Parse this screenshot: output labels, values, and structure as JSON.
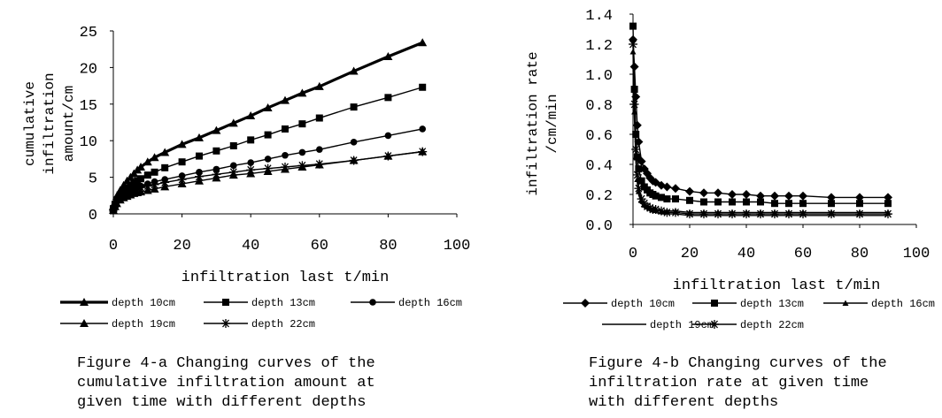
{
  "chart_data": [
    {
      "type": "line",
      "ylabel": [
        "cumulative",
        "infiltration",
        "amount/cm"
      ],
      "xlabel": "infiltration last t/min",
      "caption": "Figure 4-a Changing curves of the\ncumulative infiltration amount at\ngiven time with different depths",
      "xlim": [
        0,
        100
      ],
      "ylim": [
        0,
        25
      ],
      "x_ticks": [
        "0",
        "20",
        "40",
        "60",
        "80",
        "100"
      ],
      "y_ticks": [
        "0",
        "5",
        "10",
        "15",
        "20",
        "25"
      ],
      "grid": false,
      "legend_position": "bottom",
      "series": [
        {
          "name": "depth 10cm",
          "marker": "triangle",
          "width": 3.2,
          "x": [
            0,
            0.5,
            1,
            2,
            3,
            4,
            5,
            6,
            7,
            8,
            10,
            12,
            15,
            20,
            25,
            30,
            35,
            40,
            45,
            50,
            55,
            60,
            70,
            80,
            90
          ],
          "y": [
            0.8,
            1.6,
            2.4,
            3.2,
            3.9,
            4.5,
            5.0,
            5.5,
            6.0,
            6.4,
            7.1,
            7.7,
            8.4,
            9.5,
            10.4,
            11.4,
            12.4,
            13.4,
            14.5,
            15.5,
            16.5,
            17.4,
            19.5,
            21.5,
            23.4
          ]
        },
        {
          "name": "depth 13cm",
          "marker": "square",
          "width": 1.4,
          "x": [
            0,
            0.5,
            1,
            2,
            3,
            4,
            5,
            6,
            7,
            8,
            10,
            12,
            15,
            20,
            25,
            30,
            35,
            40,
            45,
            50,
            55,
            60,
            70,
            80,
            90
          ],
          "y": [
            0.7,
            1.3,
            1.9,
            2.6,
            3.1,
            3.5,
            3.9,
            4.2,
            4.5,
            4.8,
            5.3,
            5.7,
            6.3,
            7.1,
            7.9,
            8.6,
            9.3,
            10.1,
            10.8,
            11.6,
            12.3,
            13.1,
            14.6,
            15.9,
            17.3
          ]
        },
        {
          "name": "depth 16cm",
          "marker": "circle",
          "width": 1.4,
          "x": [
            0,
            0.5,
            1,
            2,
            3,
            4,
            5,
            6,
            7,
            8,
            10,
            12,
            15,
            20,
            25,
            30,
            35,
            40,
            45,
            50,
            55,
            60,
            70,
            80,
            90
          ],
          "y": [
            0.6,
            1.2,
            1.7,
            2.3,
            2.7,
            3.0,
            3.2,
            3.4,
            3.6,
            3.8,
            4.1,
            4.4,
            4.7,
            5.2,
            5.7,
            6.1,
            6.6,
            7.0,
            7.5,
            8.0,
            8.4,
            8.8,
            9.8,
            10.7,
            11.6
          ]
        },
        {
          "name": "depth 19cm",
          "marker": "triangle",
          "width": 1.4,
          "x": [
            0,
            0.5,
            1,
            2,
            3,
            4,
            5,
            6,
            7,
            8,
            10,
            12,
            15,
            20,
            25,
            30,
            35,
            40,
            45,
            50,
            55,
            60,
            70,
            80,
            90
          ],
          "y": [
            0.5,
            1.0,
            1.4,
            1.9,
            2.2,
            2.4,
            2.6,
            2.8,
            2.9,
            3.0,
            3.2,
            3.4,
            3.7,
            4.1,
            4.5,
            4.9,
            5.3,
            5.5,
            5.8,
            6.1,
            6.4,
            6.7,
            7.3,
            7.9,
            8.5
          ]
        },
        {
          "name": "depth 22cm",
          "marker": "asterisk",
          "width": 1.4,
          "x": [
            0,
            0.5,
            1,
            2,
            3,
            4,
            5,
            6,
            7,
            8,
            10,
            12,
            15,
            20,
            25,
            30,
            35,
            40,
            45,
            50,
            55,
            60,
            70,
            80,
            90
          ],
          "y": [
            0.6,
            1.1,
            1.6,
            2.2,
            2.6,
            2.9,
            3.1,
            3.3,
            3.5,
            3.6,
            3.8,
            4.0,
            4.3,
            4.7,
            5.1,
            5.4,
            5.7,
            6.0,
            6.2,
            6.4,
            6.6,
            6.8,
            7.3,
            7.9,
            8.5
          ]
        }
      ]
    },
    {
      "type": "line",
      "ylabel": [
        "infiltration rate",
        "/cm/min"
      ],
      "xlabel": "infiltration last t/min",
      "caption": "Figure 4-b Changing curves of the\ninfiltration rate at given time\nwith different depths",
      "xlim": [
        0,
        100
      ],
      "ylim": [
        0,
        1.4
      ],
      "x_ticks": [
        "0",
        "20",
        "40",
        "60",
        "80",
        "100"
      ],
      "y_ticks": [
        "0.0",
        "0.2",
        "0.4",
        "0.6",
        "0.8",
        "1.0",
        "1.2",
        "1.4"
      ],
      "grid": false,
      "legend_position": "bottom",
      "series": [
        {
          "name": "depth 10cm",
          "marker": "diamond",
          "width": 1.4,
          "x": [
            0,
            0.5,
            1,
            1.5,
            2,
            3,
            4,
            5,
            6,
            7,
            8,
            10,
            12,
            15,
            20,
            25,
            30,
            35,
            40,
            45,
            50,
            55,
            60,
            70,
            80,
            90
          ],
          "y": [
            1.23,
            1.05,
            0.85,
            0.66,
            0.55,
            0.42,
            0.37,
            0.34,
            0.31,
            0.29,
            0.28,
            0.26,
            0.25,
            0.24,
            0.22,
            0.21,
            0.21,
            0.2,
            0.2,
            0.19,
            0.19,
            0.19,
            0.19,
            0.18,
            0.18,
            0.18
          ]
        },
        {
          "name": "depth 13cm",
          "marker": "square",
          "width": 1.4,
          "x": [
            0,
            0.5,
            1,
            1.5,
            2,
            3,
            4,
            5,
            6,
            7,
            8,
            10,
            12,
            15,
            20,
            25,
            30,
            35,
            40,
            45,
            50,
            55,
            60,
            70,
            80,
            90
          ],
          "y": [
            1.32,
            0.9,
            0.6,
            0.45,
            0.37,
            0.29,
            0.25,
            0.23,
            0.21,
            0.2,
            0.19,
            0.18,
            0.17,
            0.17,
            0.16,
            0.15,
            0.15,
            0.15,
            0.15,
            0.15,
            0.14,
            0.14,
            0.14,
            0.14,
            0.14,
            0.14
          ]
        },
        {
          "name": "depth 16cm",
          "marker": "smalltri",
          "width": 1.4,
          "x": [
            0,
            0.5,
            1,
            1.5,
            2,
            3,
            4,
            5,
            6,
            7,
            8,
            10,
            12,
            15,
            20,
            25,
            30,
            35,
            40,
            45,
            50,
            55,
            60,
            70,
            80,
            90
          ],
          "y": [
            1.15,
            0.75,
            0.45,
            0.3,
            0.22,
            0.16,
            0.13,
            0.12,
            0.11,
            0.1,
            0.1,
            0.09,
            0.09,
            0.09,
            0.08,
            0.08,
            0.08,
            0.08,
            0.08,
            0.08,
            0.08,
            0.08,
            0.08,
            0.08,
            0.08,
            0.08
          ]
        },
        {
          "name": "depth 19cm",
          "marker": "none",
          "width": 1.4,
          "x": [
            0,
            0.5,
            1,
            1.5,
            2,
            3,
            4,
            5,
            6,
            7,
            8,
            10,
            12,
            15,
            20,
            25,
            30,
            35,
            40,
            45,
            50,
            55,
            60,
            70,
            80,
            90
          ],
          "y": [
            1.05,
            0.7,
            0.42,
            0.28,
            0.2,
            0.14,
            0.11,
            0.1,
            0.09,
            0.08,
            0.08,
            0.07,
            0.07,
            0.07,
            0.06,
            0.06,
            0.06,
            0.06,
            0.06,
            0.06,
            0.06,
            0.06,
            0.06,
            0.06,
            0.06,
            0.06
          ]
        },
        {
          "name": "depth 22cm",
          "marker": "asterisk",
          "width": 1.4,
          "x": [
            0,
            0.5,
            1,
            1.5,
            2,
            3,
            4,
            5,
            6,
            7,
            8,
            10,
            12,
            15,
            20,
            25,
            30,
            35,
            40,
            45,
            50,
            55,
            60,
            70,
            80,
            90
          ],
          "y": [
            1.2,
            0.8,
            0.5,
            0.33,
            0.24,
            0.17,
            0.14,
            0.12,
            0.11,
            0.1,
            0.1,
            0.09,
            0.08,
            0.08,
            0.07,
            0.07,
            0.07,
            0.07,
            0.07,
            0.07,
            0.07,
            0.07,
            0.07,
            0.07,
            0.07,
            0.07
          ]
        }
      ]
    }
  ]
}
